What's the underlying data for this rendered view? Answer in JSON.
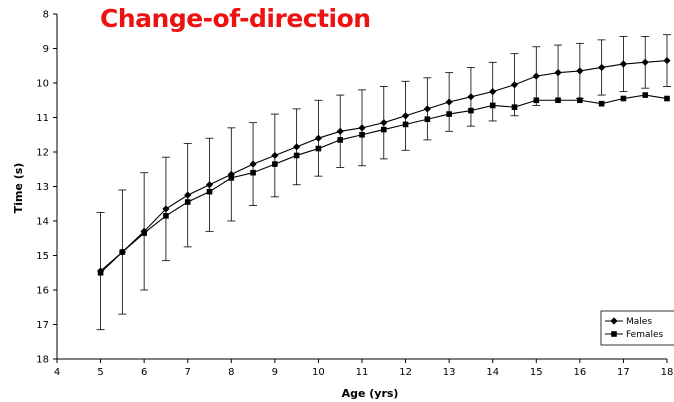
{
  "colors": {
    "title": "#ee1111",
    "series": "#000000"
  },
  "chart_data": {
    "type": "line",
    "title": "Change-of-direction",
    "xlabel": "Age (yrs)",
    "ylabel": "Time (s)",
    "xlim": [
      4,
      18
    ],
    "ylim": [
      8,
      18
    ],
    "y_inverted": true,
    "x_ticks": [
      4,
      5,
      6,
      7,
      8,
      9,
      10,
      11,
      12,
      13,
      14,
      15,
      16,
      17,
      18
    ],
    "y_ticks": [
      8,
      9,
      10,
      11,
      12,
      13,
      14,
      15,
      16,
      17,
      18
    ],
    "grid": false,
    "legend_position": "bottom-right",
    "error_bars": true,
    "x": [
      5,
      5.5,
      6,
      6.5,
      7,
      7.5,
      8,
      8.5,
      9,
      9.5,
      10,
      10.5,
      11,
      11.5,
      12,
      12.5,
      13,
      13.5,
      14,
      14.5,
      15,
      15.5,
      16,
      16.5,
      17,
      17.5,
      18
    ],
    "series": [
      {
        "name": "Males",
        "marker": "diamond",
        "values": [
          15.45,
          14.9,
          14.3,
          13.65,
          13.25,
          12.95,
          12.65,
          12.35,
          12.1,
          11.85,
          11.6,
          11.4,
          11.3,
          11.15,
          10.95,
          10.75,
          10.55,
          10.4,
          10.25,
          10.05,
          9.8,
          9.7,
          9.65,
          9.55,
          9.45,
          9.4,
          9.35
        ],
        "error": [
          1.7,
          1.8,
          1.7,
          1.5,
          1.5,
          1.35,
          1.35,
          1.2,
          1.2,
          1.1,
          1.1,
          1.05,
          1.1,
          1.05,
          1.0,
          0.9,
          0.85,
          0.85,
          0.85,
          0.9,
          0.85,
          0.8,
          0.8,
          0.8,
          0.8,
          0.75,
          0.75
        ]
      },
      {
        "name": "Females",
        "marker": "square",
        "values": [
          15.5,
          14.9,
          14.35,
          13.85,
          13.45,
          13.15,
          12.75,
          12.6,
          12.35,
          12.1,
          11.9,
          11.65,
          11.5,
          11.35,
          11.2,
          11.05,
          10.9,
          10.8,
          10.65,
          10.7,
          10.5,
          10.5,
          10.5,
          10.6,
          10.45,
          10.35,
          10.45
        ]
      }
    ]
  }
}
